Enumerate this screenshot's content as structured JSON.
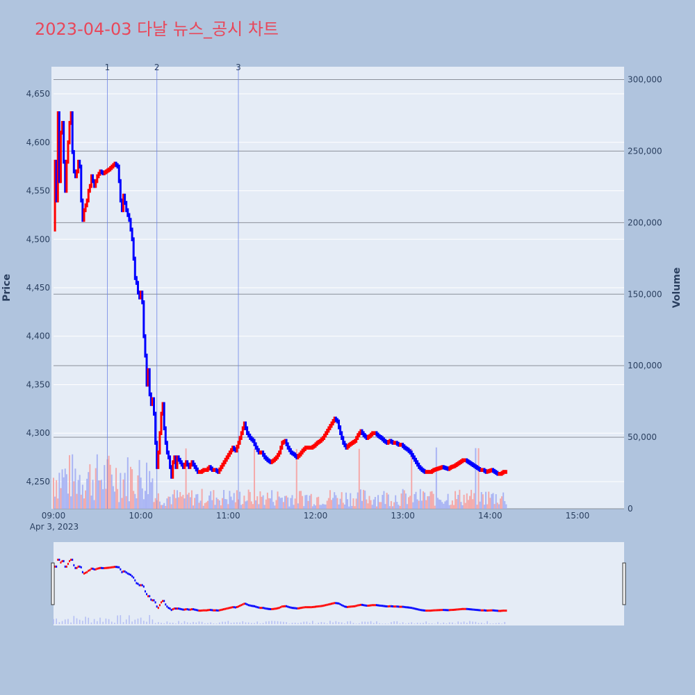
{
  "title": "2023-04-03 다날 뉴스_공시 차트",
  "colors": {
    "up": "#ff0000",
    "down": "#0000ff",
    "up_volume": "#f4a9a9",
    "down_volume": "#a9b4f4",
    "plot_bg": "#e5ecf6",
    "page_bg": "#b0c4de",
    "title": "#e8475a"
  },
  "chart_data": {
    "type": "candlestick",
    "ylabel": "Price",
    "y2label": "Volume",
    "ylim": [
      4222,
      4678
    ],
    "y2lim": [
      0,
      309000
    ],
    "price_ticks": [
      "4,250",
      "4,300",
      "4,350",
      "4,400",
      "4,450",
      "4,500",
      "4,550",
      "4,600",
      "4,650"
    ],
    "price_tick_values": [
      4250,
      4300,
      4350,
      4400,
      4450,
      4500,
      4550,
      4600,
      4650
    ],
    "volume_ticks": [
      "0",
      "50,000",
      "100,000",
      "150,000",
      "200,000",
      "250,000",
      "300,000"
    ],
    "volume_tick_values": [
      0,
      50000,
      100000,
      150000,
      200000,
      250000,
      300000
    ],
    "x_ticks": [
      "09:00",
      "10:00",
      "11:00",
      "12:00",
      "13:00",
      "14:00",
      "15:00"
    ],
    "x_tick_minutes": [
      0,
      60,
      120,
      180,
      240,
      300,
      360
    ],
    "x_date_label": "Apr 3, 2023",
    "x_range_minutes": [
      0,
      392
    ],
    "news_markers": [
      {
        "label": "1",
        "minute": 37
      },
      {
        "label": "2",
        "minute": 71
      },
      {
        "label": "3",
        "minute": 127
      }
    ],
    "price_path": [
      [
        0,
        4510
      ],
      [
        1,
        4580
      ],
      [
        2,
        4540
      ],
      [
        3,
        4630
      ],
      [
        4,
        4560
      ],
      [
        5,
        4610
      ],
      [
        6,
        4620
      ],
      [
        7,
        4580
      ],
      [
        8,
        4550
      ],
      [
        9,
        4580
      ],
      [
        10,
        4600
      ],
      [
        11,
        4620
      ],
      [
        12,
        4630
      ],
      [
        13,
        4590
      ],
      [
        14,
        4570
      ],
      [
        15,
        4565
      ],
      [
        16,
        4570
      ],
      [
        17,
        4580
      ],
      [
        18,
        4575
      ],
      [
        19,
        4540
      ],
      [
        20,
        4520
      ],
      [
        21,
        4530
      ],
      [
        22,
        4535
      ],
      [
        23,
        4540
      ],
      [
        24,
        4550
      ],
      [
        25,
        4555
      ],
      [
        26,
        4565
      ],
      [
        27,
        4560
      ],
      [
        28,
        4555
      ],
      [
        29,
        4560
      ],
      [
        30,
        4565
      ],
      [
        32,
        4570
      ],
      [
        34,
        4568
      ],
      [
        36,
        4570
      ],
      [
        38,
        4572
      ],
      [
        40,
        4575
      ],
      [
        42,
        4578
      ],
      [
        44,
        4575
      ],
      [
        45,
        4560
      ],
      [
        46,
        4540
      ],
      [
        47,
        4530
      ],
      [
        48,
        4545
      ],
      [
        50,
        4530
      ],
      [
        52,
        4520
      ],
      [
        54,
        4500
      ],
      [
        55,
        4480
      ],
      [
        56,
        4460
      ],
      [
        57,
        4455
      ],
      [
        58,
        4445
      ],
      [
        59,
        4440
      ],
      [
        60,
        4445
      ],
      [
        61,
        4435
      ],
      [
        62,
        4400
      ],
      [
        63,
        4380
      ],
      [
        64,
        4350
      ],
      [
        65,
        4365
      ],
      [
        66,
        4340
      ],
      [
        67,
        4330
      ],
      [
        68,
        4335
      ],
      [
        69,
        4320
      ],
      [
        70,
        4290
      ],
      [
        71,
        4265
      ],
      [
        72,
        4280
      ],
      [
        73,
        4300
      ],
      [
        74,
        4320
      ],
      [
        75,
        4330
      ],
      [
        76,
        4305
      ],
      [
        77,
        4290
      ],
      [
        78,
        4280
      ],
      [
        79,
        4275
      ],
      [
        80,
        4265
      ],
      [
        81,
        4255
      ],
      [
        82,
        4270
      ],
      [
        83,
        4275
      ],
      [
        84,
        4265
      ],
      [
        85,
        4275
      ],
      [
        87,
        4270
      ],
      [
        89,
        4265
      ],
      [
        91,
        4270
      ],
      [
        93,
        4265
      ],
      [
        95,
        4270
      ],
      [
        97,
        4265
      ],
      [
        99,
        4260
      ],
      [
        101,
        4260
      ],
      [
        103,
        4262
      ],
      [
        105,
        4262
      ],
      [
        107,
        4265
      ],
      [
        109,
        4262
      ],
      [
        111,
        4262
      ],
      [
        113,
        4260
      ],
      [
        115,
        4265
      ],
      [
        117,
        4270
      ],
      [
        119,
        4275
      ],
      [
        121,
        4280
      ],
      [
        123,
        4285
      ],
      [
        125,
        4282
      ],
      [
        127,
        4290
      ],
      [
        129,
        4300
      ],
      [
        131,
        4310
      ],
      [
        133,
        4300
      ],
      [
        135,
        4295
      ],
      [
        137,
        4292
      ],
      [
        139,
        4285
      ],
      [
        141,
        4280
      ],
      [
        143,
        4280
      ],
      [
        145,
        4275
      ],
      [
        147,
        4272
      ],
      [
        149,
        4270
      ],
      [
        151,
        4272
      ],
      [
        153,
        4275
      ],
      [
        155,
        4280
      ],
      [
        157,
        4290
      ],
      [
        159,
        4292
      ],
      [
        161,
        4285
      ],
      [
        163,
        4280
      ],
      [
        165,
        4278
      ],
      [
        167,
        4275
      ],
      [
        169,
        4278
      ],
      [
        171,
        4282
      ],
      [
        173,
        4285
      ],
      [
        175,
        4285
      ],
      [
        177,
        4285
      ],
      [
        179,
        4287
      ],
      [
        181,
        4290
      ],
      [
        183,
        4292
      ],
      [
        185,
        4295
      ],
      [
        187,
        4300
      ],
      [
        189,
        4305
      ],
      [
        191,
        4310
      ],
      [
        193,
        4315
      ],
      [
        195,
        4312
      ],
      [
        197,
        4300
      ],
      [
        199,
        4290
      ],
      [
        201,
        4285
      ],
      [
        203,
        4288
      ],
      [
        205,
        4290
      ],
      [
        207,
        4292
      ],
      [
        209,
        4298
      ],
      [
        211,
        4302
      ],
      [
        213,
        4298
      ],
      [
        215,
        4295
      ],
      [
        217,
        4297
      ],
      [
        219,
        4300
      ],
      [
        221,
        4300
      ],
      [
        223,
        4297
      ],
      [
        225,
        4295
      ],
      [
        227,
        4292
      ],
      [
        229,
        4290
      ],
      [
        231,
        4292
      ],
      [
        233,
        4290
      ],
      [
        235,
        4290
      ],
      [
        237,
        4288
      ],
      [
        239,
        4288
      ],
      [
        241,
        4285
      ],
      [
        243,
        4283
      ],
      [
        245,
        4280
      ],
      [
        247,
        4275
      ],
      [
        249,
        4270
      ],
      [
        251,
        4265
      ],
      [
        253,
        4262
      ],
      [
        255,
        4260
      ],
      [
        257,
        4260
      ],
      [
        259,
        4260
      ],
      [
        261,
        4262
      ],
      [
        263,
        4263
      ],
      [
        265,
        4264
      ],
      [
        267,
        4265
      ],
      [
        269,
        4264
      ],
      [
        271,
        4263
      ],
      [
        273,
        4265
      ],
      [
        275,
        4266
      ],
      [
        277,
        4268
      ],
      [
        279,
        4270
      ],
      [
        281,
        4272
      ],
      [
        283,
        4272
      ],
      [
        285,
        4270
      ],
      [
        287,
        4268
      ],
      [
        289,
        4266
      ],
      [
        291,
        4264
      ],
      [
        293,
        4262
      ],
      [
        295,
        4262
      ],
      [
        297,
        4260
      ],
      [
        299,
        4261
      ],
      [
        301,
        4262
      ],
      [
        303,
        4260
      ],
      [
        305,
        4258
      ],
      [
        307,
        4258
      ],
      [
        309,
        4260
      ],
      [
        311,
        4260
      ]
    ]
  }
}
